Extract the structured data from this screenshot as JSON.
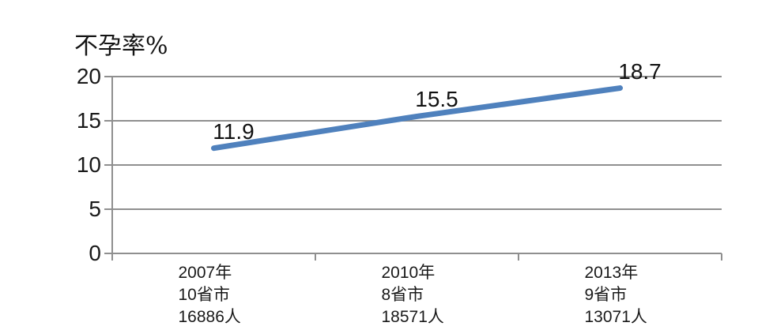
{
  "chart_data": {
    "type": "line",
    "title": "不孕率%",
    "series": [
      {
        "name": "不孕率",
        "values": [
          11.9,
          15.5,
          18.7
        ],
        "color": "#4f81bd"
      }
    ],
    "data_labels": [
      "11.9",
      "15.5",
      "18.7"
    ],
    "categories": [
      [
        "2007年",
        "10省市",
        "16886人"
      ],
      [
        "2010年",
        "8省市",
        "18571人"
      ],
      [
        "2013年",
        "9省市",
        "13071人"
      ]
    ],
    "yticks": [
      0,
      5,
      10,
      15,
      20
    ],
    "ytick_labels": [
      "0",
      "5",
      "10",
      "15",
      "20"
    ],
    "ylim": [
      0,
      20
    ],
    "xlabel": "",
    "ylabel": "不孕率%",
    "grid": "horizontal",
    "legend": "none",
    "colors": {
      "line": "#4f81bd",
      "grid": "#8f8f8f",
      "text": "#1a1a1a"
    }
  }
}
